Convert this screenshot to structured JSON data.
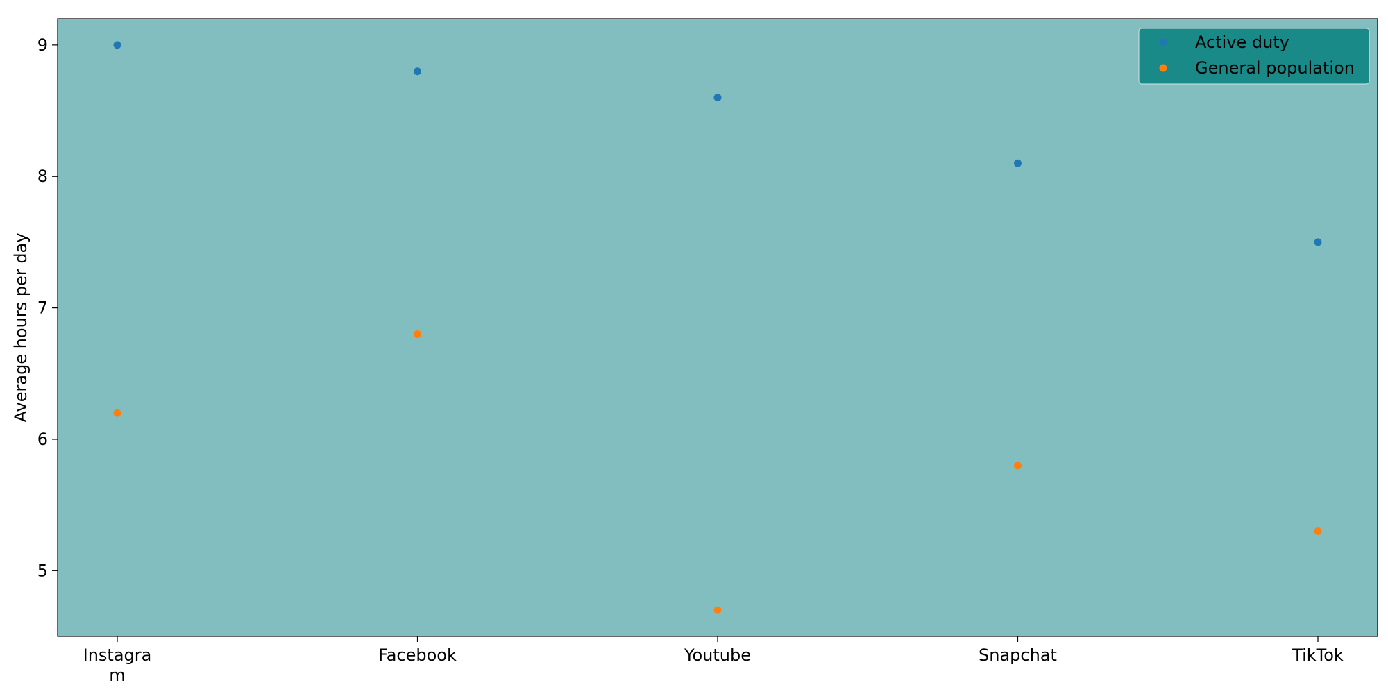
{
  "chart_data": {
    "type": "scatter",
    "title": "",
    "xlabel": "",
    "ylabel": "Average hours per day",
    "categories": [
      "Instagra\nm",
      "Facebook",
      "Youtube",
      "Snapchat",
      "TikTok"
    ],
    "ylim": [
      4.5,
      9.2
    ],
    "yticks": [
      5,
      6,
      7,
      8,
      9
    ],
    "grid": false,
    "legend_position": "top-right",
    "plot_background": "#82bebf",
    "legend_background": "#1a8a88",
    "series": [
      {
        "name": "Active duty",
        "color": "#1f77b4",
        "values": [
          9.0,
          8.8,
          8.6,
          8.1,
          7.5
        ]
      },
      {
        "name": "General population",
        "color": "#ff7f0e",
        "values": [
          6.2,
          6.8,
          4.7,
          5.8,
          5.3
        ]
      }
    ]
  }
}
